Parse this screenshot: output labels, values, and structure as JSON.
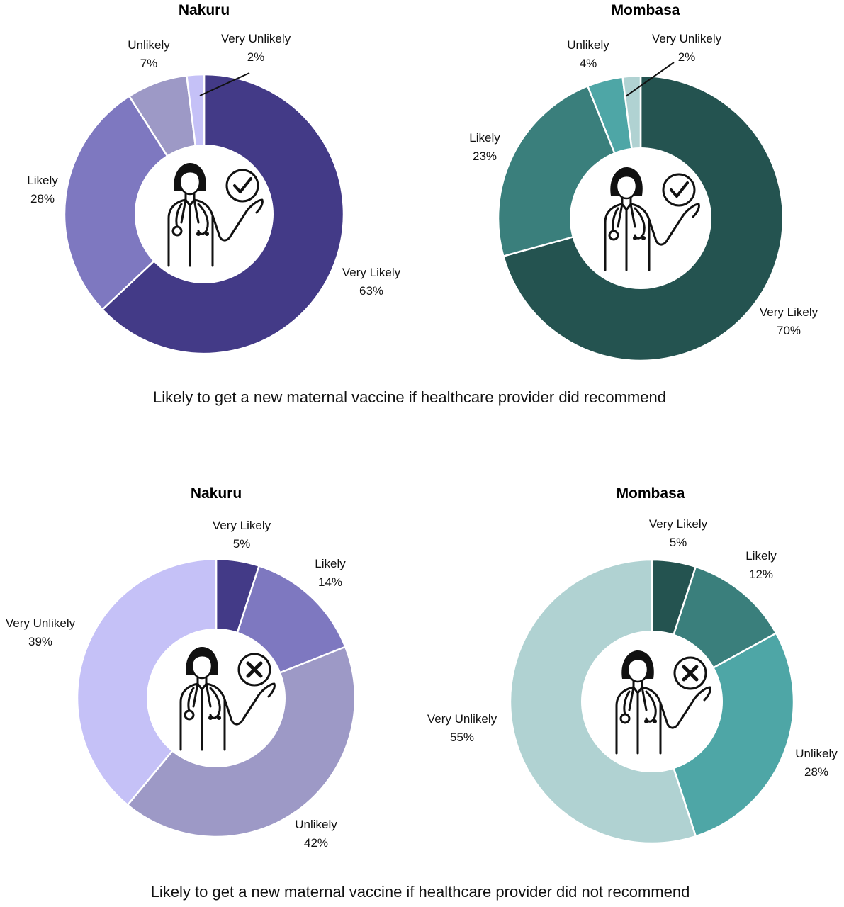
{
  "chart_data": [
    {
      "type": "pie",
      "title": "Nakuru",
      "categories": [
        "Very Likely",
        "Likely",
        "Unlikely",
        "Very Unlikely"
      ],
      "values": [
        63,
        28,
        7,
        2
      ],
      "value_labels": [
        "63%",
        "28%",
        "7%",
        "2%"
      ],
      "colors": [
        "#433a87",
        "#7e78c0",
        "#9d99c6",
        "#c5c1f7"
      ],
      "icon": "doctor-check-icon"
    },
    {
      "type": "pie",
      "title": "Mombasa",
      "categories": [
        "Very Likely",
        "Likely",
        "Unlikely",
        "Very Unlikely"
      ],
      "values": [
        70,
        23,
        4,
        2
      ],
      "value_labels": [
        "70%",
        "23%",
        "4%",
        "2%"
      ],
      "colors": [
        "#245350",
        "#3a7f7c",
        "#4ea6a6",
        "#b0d2d2"
      ],
      "icon": "doctor-check-icon"
    },
    {
      "type": "pie",
      "title": "Nakuru",
      "categories": [
        "Very Likely",
        "Likely",
        "Unlikely",
        "Very Unlikely"
      ],
      "values": [
        5,
        14,
        42,
        39
      ],
      "value_labels": [
        "5%",
        "14%",
        "42%",
        "39%"
      ],
      "colors": [
        "#433a87",
        "#7e78c0",
        "#9d99c6",
        "#c5c1f7"
      ],
      "icon": "doctor-cross-icon"
    },
    {
      "type": "pie",
      "title": "Mombasa",
      "categories": [
        "Very Likely",
        "Likely",
        "Unlikely",
        "Very Unlikely"
      ],
      "values": [
        5,
        12,
        28,
        55
      ],
      "value_labels": [
        "5%",
        "12%",
        "28%",
        "55%"
      ],
      "colors": [
        "#245350",
        "#3a7f7c",
        "#4ea6a6",
        "#b0d2d2"
      ],
      "icon": "doctor-cross-icon"
    }
  ],
  "captions": {
    "top": "Likely to get a new maternal vaccine if healthcare provider did recommend",
    "bottom": "Likely to get a new maternal vaccine if healthcare provider did not recommend"
  }
}
